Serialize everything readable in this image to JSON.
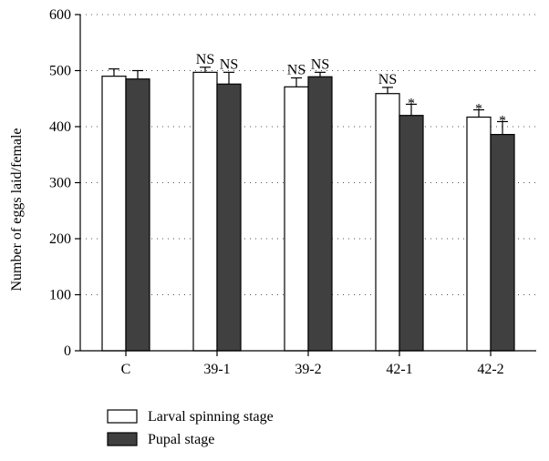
{
  "chart_data": {
    "type": "bar",
    "title": "",
    "xlabel": "",
    "ylabel": "Number of eggs laid/female",
    "ylim": [
      0,
      600
    ],
    "yticks": [
      0,
      100,
      200,
      300,
      400,
      500,
      600
    ],
    "grid": "horizontal-dotted",
    "legend_position": "bottom-left",
    "categories": [
      "C",
      "39-1",
      "39-2",
      "42-1",
      "42-2"
    ],
    "series": [
      {
        "name": "Larval spinning stage",
        "color": "#ffffff",
        "values": [
          490,
          497,
          471,
          459,
          417
        ],
        "errors": [
          13,
          9,
          16,
          11,
          13
        ],
        "annotations": [
          "",
          "NS",
          "NS",
          "NS",
          "*"
        ]
      },
      {
        "name": "Pupal stage",
        "color": "#404040",
        "values": [
          485,
          476,
          489,
          420,
          386
        ],
        "errors": [
          15,
          21,
          8,
          20,
          23
        ],
        "annotations": [
          "",
          "NS",
          "NS",
          "*",
          "*"
        ]
      }
    ]
  }
}
